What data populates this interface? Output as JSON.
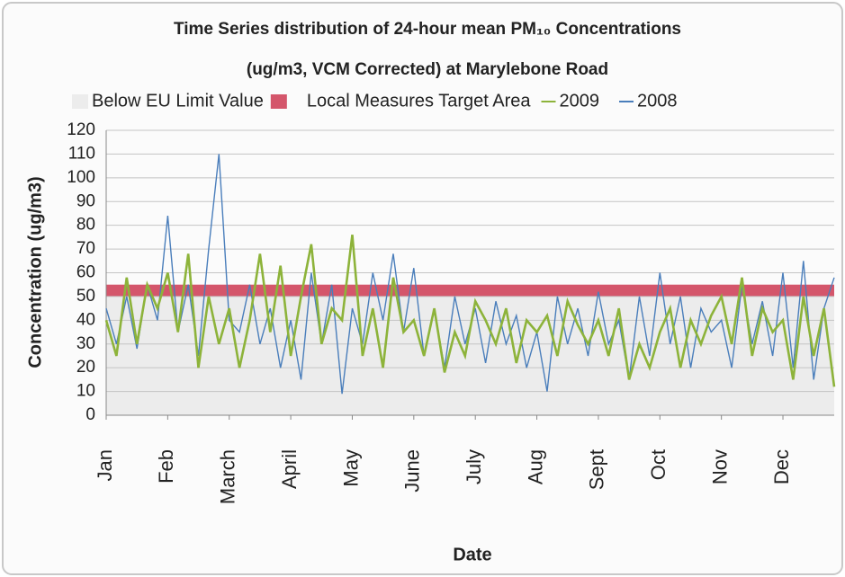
{
  "chart_data": {
    "type": "line",
    "title": "Time Series distribution of 24-hour mean PM₁₀ Concentrations",
    "subtitle": "(ug/m3, VCM Corrected) at Marylebone Road",
    "x_label": "Date",
    "y_label": "Concentration (ug/m3)",
    "categories": [
      "Jan",
      null,
      null,
      null,
      null,
      null,
      "Feb",
      null,
      null,
      null,
      null,
      null,
      "March",
      null,
      null,
      null,
      null,
      null,
      "April",
      null,
      null,
      null,
      null,
      null,
      "May",
      null,
      null,
      null,
      null,
      null,
      "June",
      null,
      null,
      null,
      null,
      null,
      "July",
      null,
      null,
      null,
      null,
      null,
      "Aug",
      null,
      null,
      null,
      null,
      null,
      "Sept",
      null,
      null,
      null,
      null,
      null,
      "Oct",
      null,
      null,
      null,
      null,
      null,
      "Nov",
      null,
      null,
      null,
      null,
      null,
      "Dec",
      null,
      null,
      null,
      null,
      null
    ],
    "bands": [
      {
        "name": "Below EU Limit Value",
        "from": 0,
        "to": 50,
        "color": "#ececec"
      },
      {
        "name": "Local Measures Target Area",
        "from": 50,
        "to": 55,
        "color": "#d4566b"
      }
    ],
    "series": [
      {
        "name": "2009",
        "color": "#8db33a",
        "values": [
          40,
          25,
          58,
          30,
          55,
          45,
          60,
          35,
          68,
          20,
          50,
          30,
          45,
          20,
          40,
          68,
          35,
          63,
          25,
          50,
          72,
          30,
          45,
          40,
          76,
          25,
          45,
          20,
          58,
          35,
          40,
          25,
          45,
          18,
          35,
          25,
          48,
          40,
          30,
          45,
          22,
          40,
          35,
          42,
          25,
          48,
          38,
          30,
          40,
          25,
          45,
          15,
          30,
          20,
          35,
          45,
          20,
          40,
          30,
          42,
          50,
          30,
          58,
          25,
          45,
          35,
          40,
          15,
          50,
          25,
          45,
          12
        ]
      },
      {
        "name": "2008",
        "color": "#4a7ebb",
        "values": [
          45,
          30,
          50,
          28,
          55,
          40,
          84,
          35,
          55,
          25,
          70,
          110,
          40,
          35,
          55,
          30,
          45,
          20,
          40,
          15,
          60,
          30,
          55,
          9,
          45,
          30,
          60,
          40,
          68,
          35,
          62,
          25,
          45,
          20,
          50,
          30,
          45,
          22,
          48,
          30,
          42,
          20,
          35,
          10,
          50,
          30,
          45,
          25,
          52,
          30,
          40,
          15,
          50,
          25,
          60,
          30,
          50,
          20,
          45,
          35,
          40,
          20,
          55,
          30,
          48,
          25,
          60,
          20,
          65,
          15,
          45,
          58
        ]
      }
    ],
    "ylim": [
      0,
      120
    ],
    "yticks": [
      0,
      10,
      20,
      30,
      40,
      50,
      60,
      70,
      80,
      90,
      100,
      110,
      120
    ],
    "grid": true
  }
}
